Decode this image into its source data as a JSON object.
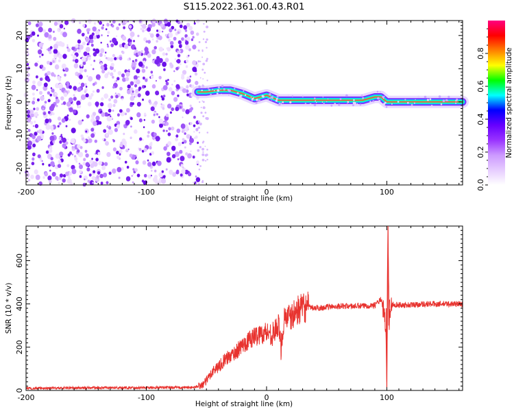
{
  "title": "S115.2022.361.00.43.R01",
  "chart_data": [
    {
      "type": "heatmap",
      "xlabel": "Height of straight line (km)",
      "ylabel": "Frequency (Hz)",
      "xlim": [
        -200,
        163
      ],
      "ylim": [
        -25,
        24.5
      ],
      "x_ticks": [
        -200,
        -100,
        0,
        100
      ],
      "y_ticks": [
        -20,
        -10,
        0,
        10,
        20
      ],
      "noise_region_x": [
        -200,
        -57
      ],
      "signal_trace": {
        "x": [
          -57,
          -50,
          -40,
          -30,
          -20,
          -10,
          0,
          10,
          20,
          40,
          60,
          80,
          90,
          95,
          100,
          110,
          130,
          150,
          163
        ],
        "frequency": [
          3,
          3,
          3.5,
          3.5,
          2.5,
          1,
          2,
          0.5,
          0.5,
          0.5,
          0.5,
          0.5,
          1.5,
          1.5,
          0,
          0,
          0,
          0,
          0
        ]
      },
      "colorbar": {
        "label": "Normalized spectral amplitude",
        "range": [
          0.0,
          1.0
        ],
        "ticks": [
          0.0,
          0.2,
          0.4,
          0.6,
          0.8
        ],
        "tick_labels": [
          "0.0",
          "0.2",
          "0.4",
          "0.6",
          "0.8"
        ],
        "colors": [
          "#ffffff",
          "#e6ccff",
          "#cc99ff",
          "#9933ff",
          "#6600ff",
          "#0000ff",
          "#00ffff",
          "#00ff00",
          "#ffff00",
          "#ff8000",
          "#ff0000",
          "#ff0080"
        ]
      }
    },
    {
      "type": "line",
      "xlabel": "Height of straight line (km)",
      "ylabel": "SNR (10 * v/v)",
      "xlim": [
        -200,
        163
      ],
      "ylim": [
        0,
        760
      ],
      "x_ticks": [
        -200,
        -100,
        0,
        100
      ],
      "y_ticks": [
        0,
        200,
        400,
        600
      ],
      "line_color": "#e8332f",
      "x": [
        -200,
        -150,
        -100,
        -60,
        -52,
        -48,
        -45,
        -40,
        -35,
        -30,
        -25,
        -20,
        -15,
        -10,
        -5,
        0,
        5,
        10,
        12,
        15,
        20,
        25,
        30,
        35,
        40,
        50,
        60,
        70,
        80,
        90,
        95,
        97,
        99,
        100,
        101,
        102,
        103,
        105,
        110,
        120,
        130,
        140,
        150,
        163
      ],
      "y": [
        10,
        12,
        13,
        14,
        30,
        60,
        90,
        110,
        140,
        160,
        180,
        210,
        230,
        250,
        260,
        270,
        260,
        300,
        200,
        350,
        330,
        370,
        380,
        385,
        380,
        385,
        390,
        390,
        390,
        395,
        420,
        380,
        300,
        20,
        700,
        300,
        380,
        400,
        395,
        395,
        400,
        400,
        400,
        400
      ]
    }
  ]
}
